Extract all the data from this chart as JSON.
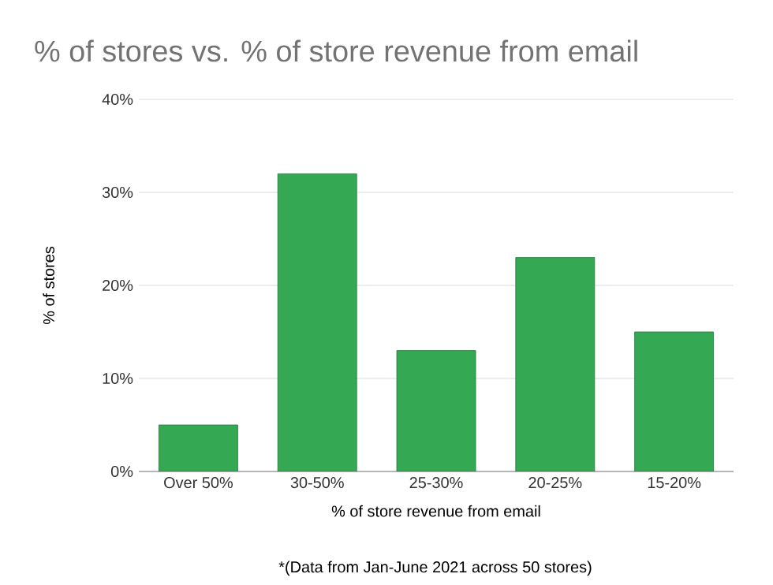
{
  "chart_data": {
    "type": "bar",
    "title": "% of stores vs. % of store revenue from email",
    "xlabel": "% of store revenue from email",
    "ylabel": "% of stores",
    "annotations": [
      "*(Data from Jan-June 2021 across 50 stores)"
    ],
    "categories": [
      "Over 50%",
      "30-50%",
      "25-30%",
      "20-25%",
      "15-20%"
    ],
    "values": [
      5,
      32,
      13,
      23,
      15
    ],
    "color": "#34a853",
    "ylim": [
      0,
      40
    ],
    "yticks": [
      {
        "value": 0,
        "label": "0%"
      },
      {
        "value": 10,
        "label": "10%"
      },
      {
        "value": 20,
        "label": "20%"
      },
      {
        "value": 30,
        "label": "30%"
      },
      {
        "value": 40,
        "label": "40%"
      }
    ],
    "grid": "y"
  }
}
